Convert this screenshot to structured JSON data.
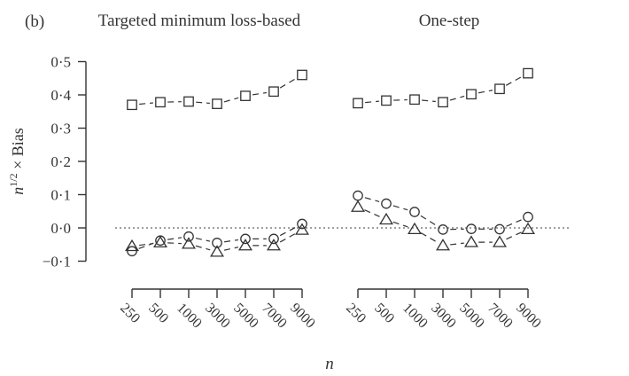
{
  "chart_data": {
    "type": "scatter",
    "figure_label": "(b)",
    "ylabel": {
      "main": "n",
      "superscript": "1/2",
      "rest": " × Bias"
    },
    "xlabel": "n",
    "ylim": [
      -0.1,
      0.5
    ],
    "y_ticks": [
      -0.1,
      0.0,
      0.1,
      0.2,
      0.3,
      0.4,
      0.5
    ],
    "y_tick_labels": [
      "−0·1",
      "0·0",
      "0·1",
      "0·2",
      "0·3",
      "0·4",
      "0·5"
    ],
    "categories": [
      "250",
      "500",
      "1000",
      "3000",
      "5000",
      "7000",
      "9000"
    ],
    "reference_line": 0.0,
    "panels": [
      {
        "title": "Targeted minimum loss-based",
        "series": [
          {
            "marker": "square",
            "values": [
              0.37,
              0.378,
              0.38,
              0.373,
              0.397,
              0.41,
              0.46
            ]
          },
          {
            "marker": "circle",
            "values": [
              -0.07,
              -0.038,
              -0.026,
              -0.045,
              -0.033,
              -0.033,
              0.012
            ]
          },
          {
            "marker": "triangle",
            "values": [
              -0.055,
              -0.044,
              -0.048,
              -0.072,
              -0.053,
              -0.053,
              -0.006
            ]
          }
        ]
      },
      {
        "title": "One-step",
        "series": [
          {
            "marker": "square",
            "values": [
              0.375,
              0.383,
              0.386,
              0.378,
              0.402,
              0.418,
              0.465
            ]
          },
          {
            "marker": "circle",
            "values": [
              0.097,
              0.073,
              0.048,
              -0.005,
              -0.003,
              -0.004,
              0.033
            ]
          },
          {
            "marker": "triangle",
            "values": [
              0.063,
              0.025,
              -0.004,
              -0.053,
              -0.043,
              -0.043,
              -0.004
            ]
          }
        ]
      }
    ]
  }
}
